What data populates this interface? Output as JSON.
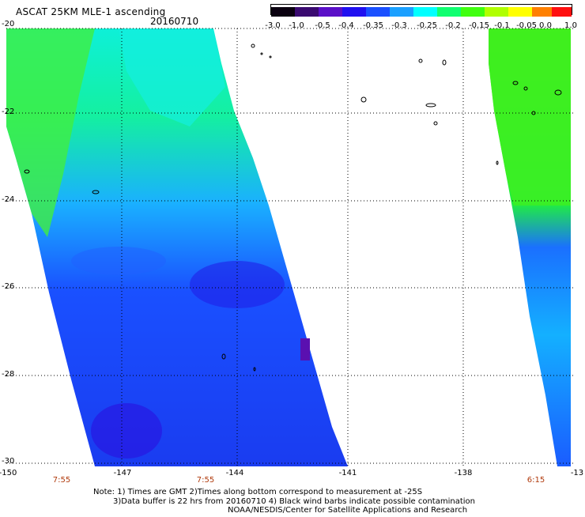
{
  "title": "ASCAT 25KM MLE-1 ascending",
  "date": "20160710",
  "colorbar": {
    "labels": [
      "-3.0",
      "-1.0",
      "-0.5",
      "-0.4",
      "-0.35",
      "-0.3",
      "-0.25",
      "-0.2",
      "-0.15",
      "-0.1",
      "-0.05",
      "0.0",
      "1.0"
    ],
    "colors": [
      "#0a0010",
      "#3a0a70",
      "#5a10c8",
      "#2010f0",
      "#1a50ff",
      "#1aa0ff",
      "#00ffff",
      "#10ff70",
      "#40ff10",
      "#b0ff00",
      "#ffff00",
      "#ff8000",
      "#ff1010"
    ]
  },
  "axes": {
    "y_labels": [
      "-20",
      "-22",
      "-24",
      "-26",
      "-28",
      "-30"
    ],
    "x_labels": [
      "-150",
      "-147",
      "-144",
      "-141",
      "-138",
      "-13"
    ]
  },
  "time_labels": [
    "7:55",
    "7:55",
    "6:15"
  ],
  "notes": [
    "Note: 1) Times are GMT 2)Times along bottom correspond to measurement at -25S",
    "3)Data buffer is 22 hrs from 20160710 4) Black wind barbs indicate possible contamination",
    "NOAA/NESDIS/Center for Satellite Applications and Research"
  ]
}
